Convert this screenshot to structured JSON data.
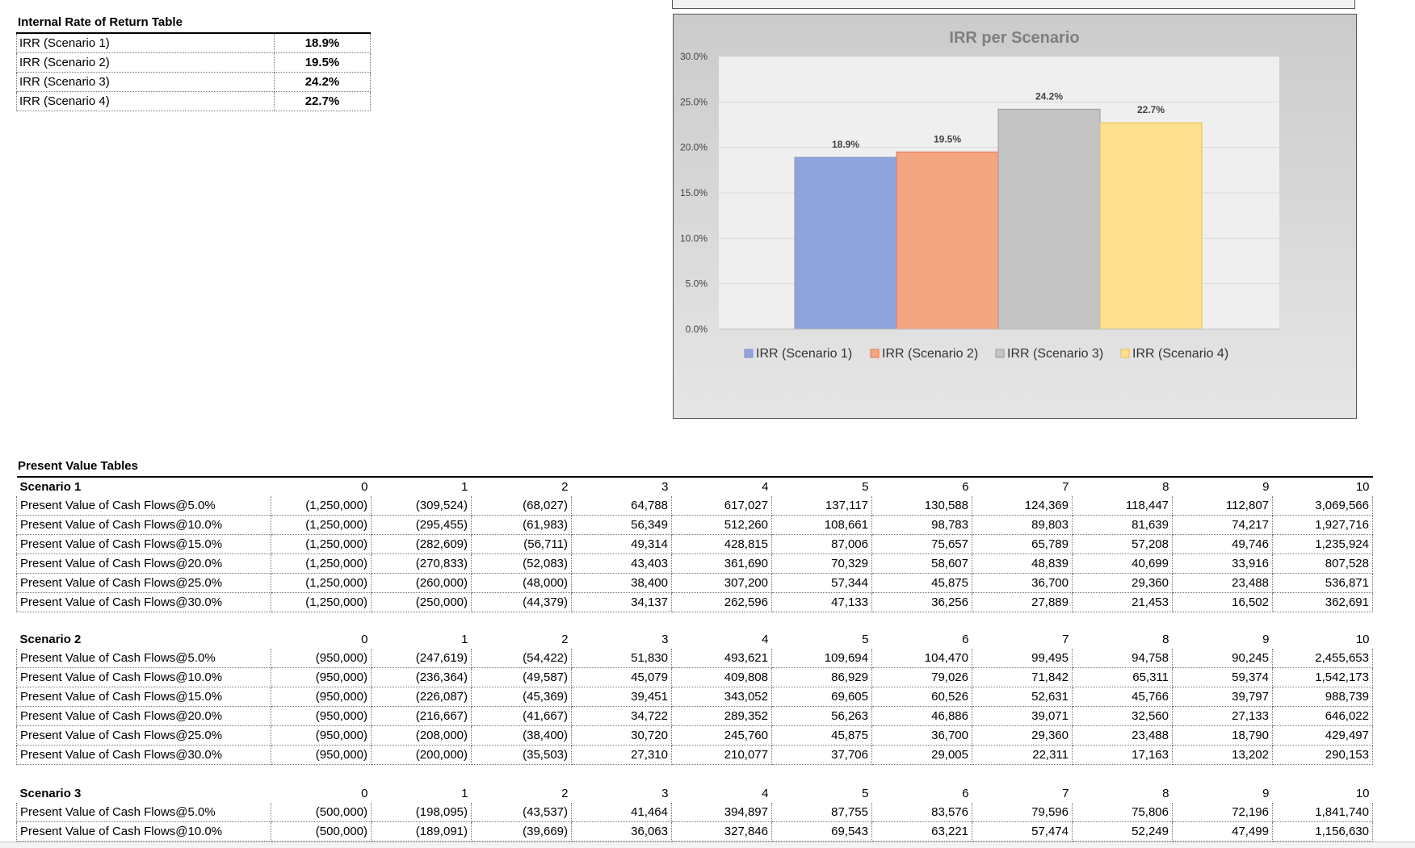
{
  "irr_table": {
    "title": "Internal Rate of Return Table",
    "rows": [
      {
        "label": "IRR (Scenario 1)",
        "value": "18.9%"
      },
      {
        "label": "IRR (Scenario 2)",
        "value": "19.5%"
      },
      {
        "label": "IRR (Scenario 3)",
        "value": "24.2%"
      },
      {
        "label": "IRR (Scenario 4)",
        "value": "22.7%"
      }
    ]
  },
  "chart_data": {
    "type": "bar",
    "title": "IRR per Scenario",
    "categories": [
      "IRR (Scenario 1)",
      "IRR (Scenario 2)",
      "IRR (Scenario 3)",
      "IRR (Scenario 4)"
    ],
    "values": [
      18.9,
      19.5,
      24.2,
      22.7
    ],
    "data_labels": [
      "18.9%",
      "19.5%",
      "24.2%",
      "22.7%"
    ],
    "ylim": [
      0,
      30
    ],
    "yticks": [
      "0.0%",
      "5.0%",
      "10.0%",
      "15.0%",
      "20.0%",
      "25.0%",
      "30.0%"
    ],
    "colors": [
      "#8fa3dc",
      "#f4a582",
      "#c4c4c4",
      "#fde08f"
    ],
    "legend": "bottom",
    "grid": true
  },
  "pv_tables": {
    "title": "Present Value Tables",
    "periods": [
      "0",
      "1",
      "2",
      "3",
      "4",
      "5",
      "6",
      "7",
      "8",
      "9",
      "10"
    ],
    "scenarios": [
      {
        "name": "Scenario 1",
        "rows": [
          {
            "label": "Present Value of Cash Flows@5.0%",
            "values": [
              "(1,250,000)",
              "(309,524)",
              "(68,027)",
              "64,788",
              "617,027",
              "137,117",
              "130,588",
              "124,369",
              "118,447",
              "112,807",
              "3,069,566"
            ]
          },
          {
            "label": "Present Value of Cash Flows@10.0%",
            "values": [
              "(1,250,000)",
              "(295,455)",
              "(61,983)",
              "56,349",
              "512,260",
              "108,661",
              "98,783",
              "89,803",
              "81,639",
              "74,217",
              "1,927,716"
            ]
          },
          {
            "label": "Present Value of Cash Flows@15.0%",
            "values": [
              "(1,250,000)",
              "(282,609)",
              "(56,711)",
              "49,314",
              "428,815",
              "87,006",
              "75,657",
              "65,789",
              "57,208",
              "49,746",
              "1,235,924"
            ]
          },
          {
            "label": "Present Value of Cash Flows@20.0%",
            "values": [
              "(1,250,000)",
              "(270,833)",
              "(52,083)",
              "43,403",
              "361,690",
              "70,329",
              "58,607",
              "48,839",
              "40,699",
              "33,916",
              "807,528"
            ]
          },
          {
            "label": "Present Value of Cash Flows@25.0%",
            "values": [
              "(1,250,000)",
              "(260,000)",
              "(48,000)",
              "38,400",
              "307,200",
              "57,344",
              "45,875",
              "36,700",
              "29,360",
              "23,488",
              "536,871"
            ]
          },
          {
            "label": "Present Value of Cash Flows@30.0%",
            "values": [
              "(1,250,000)",
              "(250,000)",
              "(44,379)",
              "34,137",
              "262,596",
              "47,133",
              "36,256",
              "27,889",
              "21,453",
              "16,502",
              "362,691"
            ]
          }
        ]
      },
      {
        "name": "Scenario 2",
        "rows": [
          {
            "label": "Present Value of Cash Flows@5.0%",
            "values": [
              "(950,000)",
              "(247,619)",
              "(54,422)",
              "51,830",
              "493,621",
              "109,694",
              "104,470",
              "99,495",
              "94,758",
              "90,245",
              "2,455,653"
            ]
          },
          {
            "label": "Present Value of Cash Flows@10.0%",
            "values": [
              "(950,000)",
              "(236,364)",
              "(49,587)",
              "45,079",
              "409,808",
              "86,929",
              "79,026",
              "71,842",
              "65,311",
              "59,374",
              "1,542,173"
            ]
          },
          {
            "label": "Present Value of Cash Flows@15.0%",
            "values": [
              "(950,000)",
              "(226,087)",
              "(45,369)",
              "39,451",
              "343,052",
              "69,605",
              "60,526",
              "52,631",
              "45,766",
              "39,797",
              "988,739"
            ]
          },
          {
            "label": "Present Value of Cash Flows@20.0%",
            "values": [
              "(950,000)",
              "(216,667)",
              "(41,667)",
              "34,722",
              "289,352",
              "56,263",
              "46,886",
              "39,071",
              "32,560",
              "27,133",
              "646,022"
            ]
          },
          {
            "label": "Present Value of Cash Flows@25.0%",
            "values": [
              "(950,000)",
              "(208,000)",
              "(38,400)",
              "30,720",
              "245,760",
              "45,875",
              "36,700",
              "29,360",
              "23,488",
              "18,790",
              "429,497"
            ]
          },
          {
            "label": "Present Value of Cash Flows@30.0%",
            "values": [
              "(950,000)",
              "(200,000)",
              "(35,503)",
              "27,310",
              "210,077",
              "37,706",
              "29,005",
              "22,311",
              "17,163",
              "13,202",
              "290,153"
            ]
          }
        ]
      },
      {
        "name": "Scenario 3",
        "rows": [
          {
            "label": "Present Value of Cash Flows@5.0%",
            "values": [
              "(500,000)",
              "(198,095)",
              "(43,537)",
              "41,464",
              "394,897",
              "87,755",
              "83,576",
              "79,596",
              "75,806",
              "72,196",
              "1,841,740"
            ]
          },
          {
            "label": "Present Value of Cash Flows@10.0%",
            "values": [
              "(500,000)",
              "(189,091)",
              "(39,669)",
              "36,063",
              "327,846",
              "69,543",
              "63,221",
              "57,474",
              "52,249",
              "47,499",
              "1,156,630"
            ]
          }
        ]
      }
    ]
  }
}
